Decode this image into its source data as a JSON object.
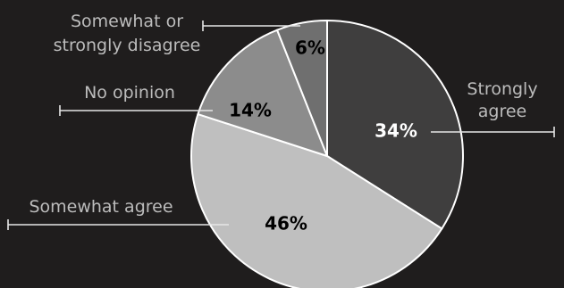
{
  "chart_data": {
    "type": "pie",
    "slices": [
      {
        "label": "Strongly agree",
        "label_lines": [
          "Strongly",
          "agree"
        ],
        "value": 34,
        "value_label": "34%",
        "color": "#3f3e3e",
        "value_color": "#ffffff"
      },
      {
        "label": "Somewhat agree",
        "label_lines": [
          "Somewhat agree"
        ],
        "value": 46,
        "value_label": "46%",
        "color": "#bfbfbf",
        "value_color": "#000000"
      },
      {
        "label": "No opinion",
        "label_lines": [
          "No opinion"
        ],
        "value": 14,
        "value_label": "14%",
        "color": "#8c8c8c",
        "value_color": "#000000"
      },
      {
        "label": "Somewhat or strongly disagree",
        "label_lines": [
          "Somewhat or",
          "strongly disagree"
        ],
        "value": 6,
        "value_label": "6%",
        "color": "#6f6f6f",
        "value_color": "#000000"
      }
    ],
    "title": "",
    "legend": "none"
  }
}
